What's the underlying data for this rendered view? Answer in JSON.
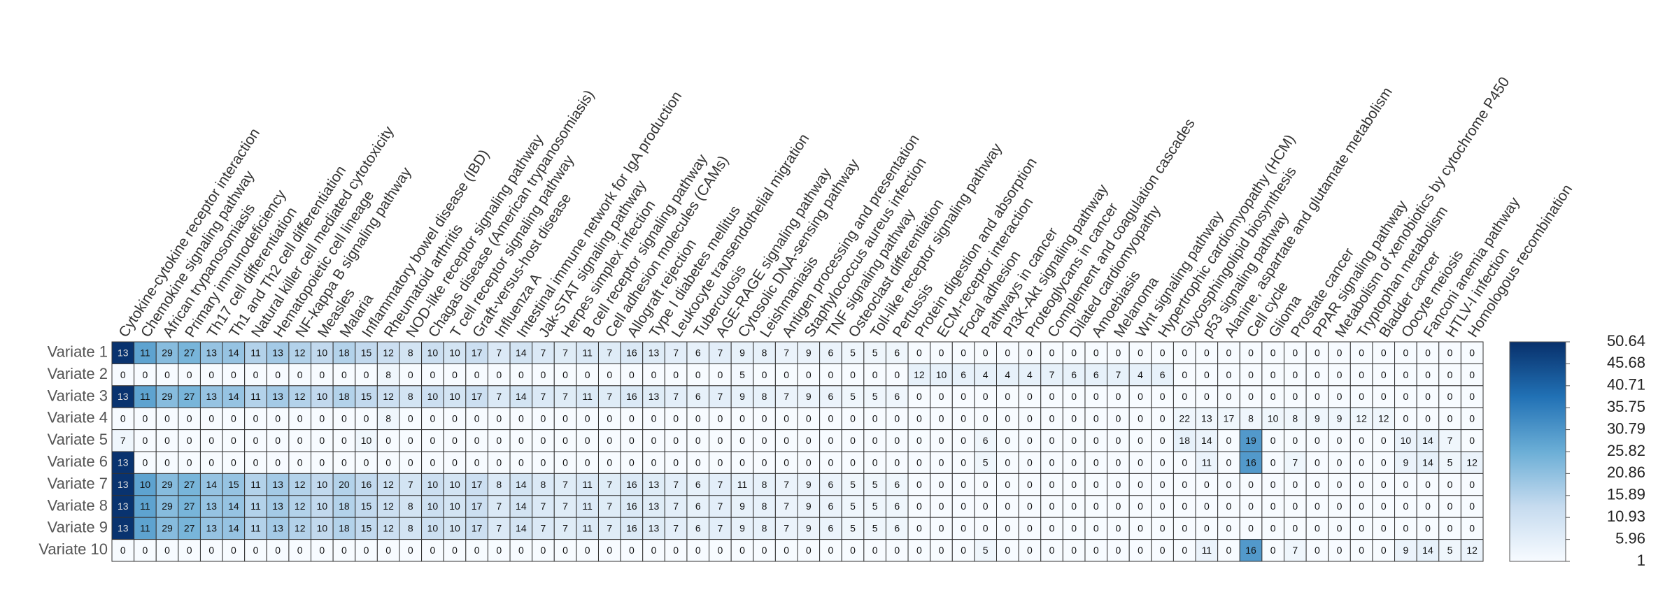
{
  "chart_data": {
    "type": "heatmap",
    "x": [
      "Cytokine-cytokine receptor interaction",
      "Chemokine signaling pathway",
      "African trypanosomiasis",
      "Primary immunodeficiency",
      "Th17 cell differentiation",
      "Th1 and Th2 cell differentiation",
      "Natural killer cell mediated cytotoxicity",
      "Hematopoietic cell lineage",
      "NF-kappa B signaling pathway",
      "Measles",
      "Malaria",
      "Inflammatory bowel disease (IBD)",
      "Rheumatoid arthritis",
      "NOD-like receptor signaling pathway",
      "Chagas disease (American trypanosomiasis)",
      "T cell receptor signaling pathway",
      "Graft-versus-host disease",
      "Influenza A",
      "Intestinal immune network for IgA production",
      "Jak-STAT signaling pathway",
      "Herpes simplex infection",
      "B cell receptor signaling pathway",
      "Cell adhesion molecules (CAMs)",
      "Allograft rejection",
      "Type I diabetes mellitus",
      "Leukocyte transendothelial migration",
      "Tuberculosis",
      "AGE-RAGE signaling pathway",
      "Cytosolic DNA-sensing pathway",
      "Leishmaniasis",
      "Antigen processing and presentation",
      "Staphylococcus aureus infection",
      "TNF signaling pathway",
      "Osteoclast differentiation",
      "Toll-like receptor signaling pathway",
      "Pertussis",
      "Protein digestion and absorption",
      "ECM-receptor interaction",
      "Focal adhesion",
      "Pathways in cancer",
      "PI3K-Akt signaling pathway",
      "Proteoglycans in cancer",
      "Complement and coagulation cascades",
      "Dilated cardiomyopathy",
      "Amoebiasis",
      "Melanoma",
      "Wnt signaling pathway",
      "Hypertrophic cardiomyopathy (HCM)",
      "Glycosphingolipid biosynthesis",
      "p53 signaling pathway",
      "Alanine, aspartate and glutamate metabolism",
      "Cell cycle",
      "Glioma",
      "Prostate cancer",
      "PPAR signaling pathway",
      "Metabolism of xenobiotics by cytochrome P450",
      "Tryptophan metabolism",
      "Bladder cancer",
      "Oocyte meiosis",
      "Fanconi anemia pathway",
      "HTLV-I infection",
      "Homologous recombination"
    ],
    "y": [
      "Variate 1",
      "Variate 2",
      "Variate 3",
      "Variate 4",
      "Variate 5",
      "Variate 6",
      "Variate 7",
      "Variate 8",
      "Variate 9",
      "Variate 10"
    ],
    "values": [
      [
        13,
        11,
        29,
        27,
        13,
        14,
        11,
        13,
        12,
        10,
        18,
        15,
        12,
        8,
        10,
        10,
        17,
        7,
        14,
        7,
        7,
        11,
        7,
        16,
        13,
        7,
        6,
        7,
        9,
        8,
        7,
        9,
        6,
        5,
        5,
        6,
        0,
        0,
        0,
        0,
        0,
        0,
        0,
        0,
        0,
        0,
        0,
        0,
        0,
        0,
        0,
        0,
        0,
        0,
        0,
        0,
        0,
        0,
        0,
        0,
        0,
        0
      ],
      [
        0,
        0,
        0,
        0,
        0,
        0,
        0,
        0,
        0,
        0,
        0,
        0,
        8,
        0,
        0,
        0,
        0,
        0,
        0,
        0,
        0,
        0,
        0,
        0,
        0,
        0,
        0,
        0,
        5,
        0,
        0,
        0,
        0,
        0,
        0,
        0,
        12,
        10,
        6,
        4,
        4,
        4,
        7,
        6,
        6,
        7,
        4,
        6,
        0,
        0,
        0,
        0,
        0,
        0,
        0,
        0,
        0,
        0,
        0,
        0,
        0,
        0
      ],
      [
        13,
        11,
        29,
        27,
        13,
        14,
        11,
        13,
        12,
        10,
        18,
        15,
        12,
        8,
        10,
        10,
        17,
        7,
        14,
        7,
        7,
        11,
        7,
        16,
        13,
        7,
        6,
        7,
        9,
        8,
        7,
        9,
        6,
        5,
        5,
        6,
        0,
        0,
        0,
        0,
        0,
        0,
        0,
        0,
        0,
        0,
        0,
        0,
        0,
        0,
        0,
        0,
        0,
        0,
        0,
        0,
        0,
        0,
        0,
        0,
        0,
        0
      ],
      [
        0,
        0,
        0,
        0,
        0,
        0,
        0,
        0,
        0,
        0,
        0,
        0,
        8,
        0,
        0,
        0,
        0,
        0,
        0,
        0,
        0,
        0,
        0,
        0,
        0,
        0,
        0,
        0,
        0,
        0,
        0,
        0,
        0,
        0,
        0,
        0,
        0,
        0,
        0,
        0,
        0,
        0,
        0,
        0,
        0,
        0,
        0,
        0,
        22,
        13,
        17,
        8,
        10,
        8,
        9,
        9,
        12,
        12,
        0,
        0,
        0,
        0
      ],
      [
        7,
        0,
        0,
        0,
        0,
        0,
        0,
        0,
        0,
        0,
        0,
        10,
        0,
        0,
        0,
        0,
        0,
        0,
        0,
        0,
        0,
        0,
        0,
        0,
        0,
        0,
        0,
        0,
        0,
        0,
        0,
        0,
        0,
        0,
        0,
        0,
        0,
        0,
        0,
        6,
        0,
        0,
        0,
        0,
        0,
        0,
        0,
        0,
        18,
        14,
        0,
        19,
        0,
        0,
        0,
        0,
        0,
        0,
        10,
        14,
        7,
        0
      ],
      [
        13,
        0,
        0,
        0,
        0,
        0,
        0,
        0,
        0,
        0,
        0,
        0,
        0,
        0,
        0,
        0,
        0,
        0,
        0,
        0,
        0,
        0,
        0,
        0,
        0,
        0,
        0,
        0,
        0,
        0,
        0,
        0,
        0,
        0,
        0,
        0,
        0,
        0,
        0,
        5,
        0,
        0,
        0,
        0,
        0,
        0,
        0,
        0,
        0,
        11,
        0,
        16,
        0,
        7,
        0,
        0,
        0,
        0,
        9,
        14,
        5,
        12
      ],
      [
        13,
        10,
        29,
        27,
        14,
        15,
        11,
        13,
        12,
        10,
        20,
        16,
        12,
        7,
        10,
        10,
        17,
        8,
        14,
        8,
        7,
        11,
        7,
        16,
        13,
        7,
        6,
        7,
        11,
        8,
        7,
        9,
        6,
        5,
        5,
        6,
        0,
        0,
        0,
        0,
        0,
        0,
        0,
        0,
        0,
        0,
        0,
        0,
        0,
        0,
        0,
        0,
        0,
        0,
        0,
        0,
        0,
        0,
        0,
        0,
        0,
        0
      ],
      [
        13,
        11,
        29,
        27,
        13,
        14,
        11,
        13,
        12,
        10,
        18,
        15,
        12,
        8,
        10,
        10,
        17,
        7,
        14,
        7,
        7,
        11,
        7,
        16,
        13,
        7,
        6,
        7,
        9,
        8,
        7,
        9,
        6,
        5,
        5,
        6,
        0,
        0,
        0,
        0,
        0,
        0,
        0,
        0,
        0,
        0,
        0,
        0,
        0,
        0,
        0,
        0,
        0,
        0,
        0,
        0,
        0,
        0,
        0,
        0,
        0,
        0
      ],
      [
        13,
        11,
        29,
        27,
        13,
        14,
        11,
        13,
        12,
        10,
        18,
        15,
        12,
        8,
        10,
        10,
        17,
        7,
        14,
        7,
        7,
        11,
        7,
        16,
        13,
        7,
        6,
        7,
        9,
        8,
        7,
        9,
        6,
        5,
        5,
        6,
        0,
        0,
        0,
        0,
        0,
        0,
        0,
        0,
        0,
        0,
        0,
        0,
        0,
        0,
        0,
        0,
        0,
        0,
        0,
        0,
        0,
        0,
        0,
        0,
        0,
        0
      ],
      [
        0,
        0,
        0,
        0,
        0,
        0,
        0,
        0,
        0,
        0,
        0,
        0,
        0,
        0,
        0,
        0,
        0,
        0,
        0,
        0,
        0,
        0,
        0,
        0,
        0,
        0,
        0,
        0,
        0,
        0,
        0,
        0,
        0,
        0,
        0,
        0,
        0,
        0,
        0,
        5,
        0,
        0,
        0,
        0,
        0,
        0,
        0,
        0,
        0,
        11,
        0,
        16,
        0,
        7,
        0,
        0,
        0,
        0,
        9,
        14,
        5,
        12
      ]
    ],
    "color_values": [
      [
        50,
        28,
        22,
        24,
        20,
        20,
        16,
        18,
        16,
        14,
        16,
        14,
        12,
        10,
        12,
        10,
        12,
        8,
        10,
        8,
        7,
        8,
        7,
        8,
        7,
        6,
        5,
        6,
        5,
        5,
        4,
        4,
        4,
        3,
        3,
        3,
        0,
        0,
        0,
        0,
        0,
        0,
        0,
        0,
        0,
        0,
        0,
        0,
        0,
        0,
        0,
        0,
        0,
        0,
        0,
        0,
        0,
        0,
        0,
        0,
        0,
        0
      ],
      [
        0,
        0,
        0,
        0,
        0,
        0,
        0,
        0,
        0,
        0,
        0,
        0,
        3,
        0,
        0,
        0,
        0,
        0,
        0,
        0,
        0,
        0,
        0,
        0,
        0,
        0,
        0,
        0,
        2,
        0,
        0,
        0,
        0,
        0,
        0,
        0,
        5,
        5,
        5,
        5,
        5,
        5,
        5,
        5,
        5,
        5,
        5,
        5,
        0,
        0,
        0,
        0,
        0,
        0,
        0,
        0,
        0,
        0,
        0,
        0,
        0,
        0
      ],
      [
        50,
        28,
        22,
        24,
        20,
        20,
        16,
        18,
        16,
        14,
        16,
        14,
        12,
        10,
        12,
        10,
        12,
        8,
        10,
        8,
        7,
        8,
        7,
        8,
        7,
        6,
        5,
        6,
        5,
        5,
        4,
        4,
        4,
        3,
        3,
        3,
        0,
        0,
        0,
        0,
        0,
        0,
        0,
        0,
        0,
        0,
        0,
        0,
        0,
        0,
        0,
        0,
        0,
        0,
        0,
        0,
        0,
        0,
        0,
        0,
        0,
        0
      ],
      [
        0,
        0,
        0,
        0,
        0,
        0,
        0,
        0,
        0,
        0,
        0,
        0,
        3,
        0,
        0,
        0,
        0,
        0,
        0,
        0,
        0,
        0,
        0,
        0,
        0,
        0,
        0,
        0,
        0,
        0,
        0,
        0,
        0,
        0,
        0,
        0,
        0,
        0,
        0,
        0,
        0,
        0,
        0,
        0,
        0,
        0,
        0,
        0,
        3,
        3,
        3,
        3,
        3,
        3,
        3,
        3,
        3,
        3,
        0,
        0,
        0,
        0
      ],
      [
        3,
        0,
        0,
        0,
        0,
        0,
        0,
        0,
        0,
        0,
        0,
        3,
        0,
        0,
        0,
        0,
        0,
        0,
        0,
        0,
        0,
        0,
        0,
        0,
        0,
        0,
        0,
        0,
        0,
        0,
        0,
        0,
        0,
        0,
        0,
        0,
        0,
        0,
        0,
        3,
        0,
        0,
        0,
        0,
        0,
        0,
        0,
        0,
        5,
        4,
        0,
        30,
        0,
        0,
        0,
        0,
        0,
        0,
        4,
        5,
        3,
        0
      ],
      [
        50,
        0,
        0,
        0,
        0,
        0,
        0,
        0,
        0,
        0,
        0,
        0,
        0,
        0,
        0,
        0,
        0,
        0,
        0,
        0,
        0,
        0,
        0,
        0,
        0,
        0,
        0,
        0,
        0,
        0,
        0,
        0,
        0,
        0,
        0,
        0,
        0,
        0,
        0,
        3,
        0,
        0,
        0,
        0,
        0,
        0,
        0,
        0,
        0,
        4,
        0,
        30,
        0,
        3,
        0,
        0,
        0,
        0,
        4,
        5,
        3,
        4
      ],
      [
        50,
        28,
        22,
        24,
        20,
        20,
        16,
        18,
        16,
        14,
        16,
        14,
        12,
        10,
        12,
        10,
        12,
        8,
        10,
        8,
        7,
        8,
        7,
        8,
        7,
        6,
        5,
        6,
        5,
        5,
        4,
        4,
        4,
        3,
        3,
        3,
        0,
        0,
        0,
        0,
        0,
        0,
        0,
        0,
        0,
        0,
        0,
        0,
        0,
        0,
        0,
        0,
        0,
        0,
        0,
        0,
        0,
        0,
        0,
        0,
        0,
        0
      ],
      [
        50,
        28,
        22,
        24,
        20,
        20,
        16,
        18,
        16,
        14,
        16,
        14,
        12,
        10,
        12,
        10,
        12,
        8,
        10,
        8,
        7,
        8,
        7,
        8,
        7,
        6,
        5,
        6,
        5,
        5,
        4,
        4,
        4,
        3,
        3,
        3,
        0,
        0,
        0,
        0,
        0,
        0,
        0,
        0,
        0,
        0,
        0,
        0,
        0,
        0,
        0,
        0,
        0,
        0,
        0,
        0,
        0,
        0,
        0,
        0,
        0,
        0
      ],
      [
        50,
        28,
        22,
        24,
        20,
        20,
        16,
        18,
        16,
        14,
        16,
        14,
        12,
        10,
        12,
        10,
        12,
        8,
        10,
        8,
        7,
        8,
        7,
        8,
        7,
        6,
        5,
        6,
        5,
        5,
        4,
        4,
        4,
        3,
        3,
        3,
        0,
        0,
        0,
        0,
        0,
        0,
        0,
        0,
        0,
        0,
        0,
        0,
        0,
        0,
        0,
        0,
        0,
        0,
        0,
        0,
        0,
        0,
        0,
        0,
        0,
        0
      ],
      [
        0,
        0,
        0,
        0,
        0,
        0,
        0,
        0,
        0,
        0,
        0,
        0,
        0,
        0,
        0,
        0,
        0,
        0,
        0,
        0,
        0,
        0,
        0,
        0,
        0,
        0,
        0,
        0,
        0,
        0,
        0,
        0,
        0,
        0,
        0,
        0,
        0,
        0,
        0,
        3,
        0,
        0,
        0,
        0,
        0,
        0,
        0,
        0,
        0,
        4,
        0,
        30,
        0,
        3,
        0,
        0,
        0,
        0,
        4,
        5,
        3,
        4
      ]
    ],
    "colorbar_lim": [
      1,
      50.64
    ],
    "colorbar_ticks": [
      50.64,
      45.68,
      40.71,
      35.75,
      30.79,
      25.82,
      20.86,
      15.89,
      10.93,
      5.96,
      1
    ],
    "colors": [
      "#f7fbff",
      "#c6dbef",
      "#6baed6",
      "#2171b5",
      "#08306b"
    ]
  }
}
